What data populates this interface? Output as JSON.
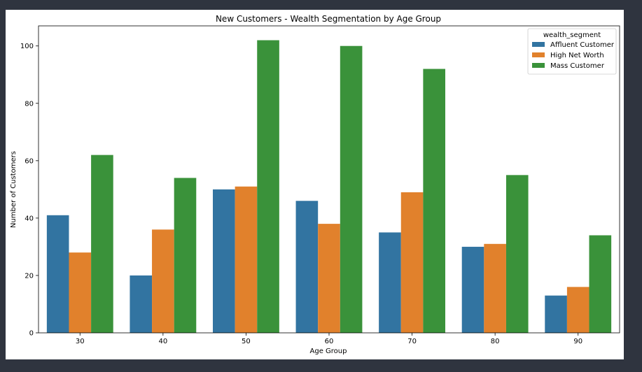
{
  "chart_data": {
    "type": "bar",
    "title": "New Customers - Wealth Segmentation by Age Group",
    "xlabel": "Age Group",
    "ylabel": "Number of Customers",
    "categories": [
      "30",
      "40",
      "50",
      "60",
      "70",
      "80",
      "90"
    ],
    "series": [
      {
        "name": "Affluent Customer",
        "color": "#3274a1",
        "values": [
          41,
          20,
          50,
          46,
          35,
          30,
          13
        ]
      },
      {
        "name": "High Net Worth",
        "color": "#e1812c",
        "values": [
          28,
          36,
          51,
          38,
          49,
          31,
          16
        ]
      },
      {
        "name": "Mass Customer",
        "color": "#3a923a",
        "values": [
          62,
          54,
          102,
          100,
          92,
          55,
          34
        ]
      }
    ],
    "ylim": [
      0,
      107
    ],
    "yticks": [
      0,
      20,
      40,
      60,
      80,
      100
    ],
    "legend": {
      "title": "wealth_segment",
      "placement": "top-right"
    },
    "grid": false
  }
}
